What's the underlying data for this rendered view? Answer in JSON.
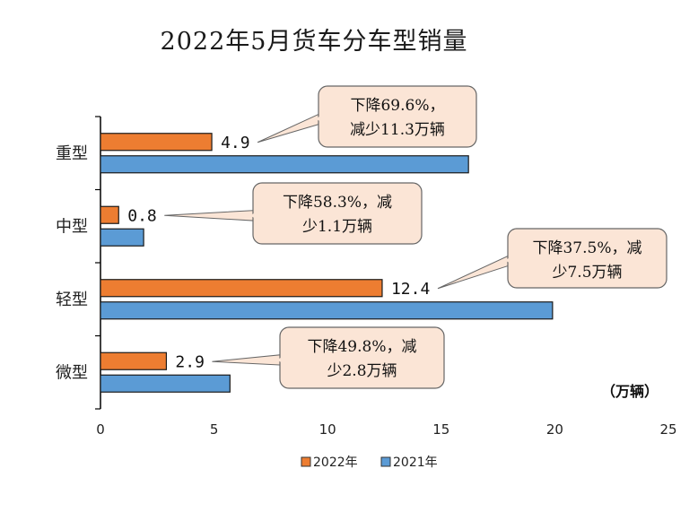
{
  "chart_data": {
    "type": "bar",
    "orientation": "horizontal",
    "title": "2022年5月货车分车型销量",
    "unit": "（万辆）",
    "categories": [
      "重型",
      "中型",
      "轻型",
      "微型"
    ],
    "series": [
      {
        "name": "2022年",
        "color": "#ed7d31",
        "values": [
          4.9,
          0.8,
          12.4,
          2.9
        ]
      },
      {
        "name": "2021年",
        "color": "#5b9bd5",
        "values": [
          16.2,
          1.9,
          19.9,
          5.7
        ]
      }
    ],
    "data_labels": [
      "4.9",
      "0.8",
      "12.4",
      "2.9"
    ],
    "xlim": [
      0,
      25
    ],
    "xticks": [
      0,
      5,
      10,
      15,
      20,
      25
    ],
    "grid": false,
    "legend_position": "bottom",
    "annotations": [
      {
        "category": "重型",
        "lines": [
          "下降69.6%，",
          "减少11.3万辆"
        ]
      },
      {
        "category": "中型",
        "lines": [
          "下降58.3%，减",
          "少1.1万辆"
        ]
      },
      {
        "category": "轻型",
        "lines": [
          "下降37.5%，减",
          "少7.5万辆"
        ]
      },
      {
        "category": "微型",
        "lines": [
          "下降49.8%，减",
          "少2.8万辆"
        ]
      }
    ]
  }
}
